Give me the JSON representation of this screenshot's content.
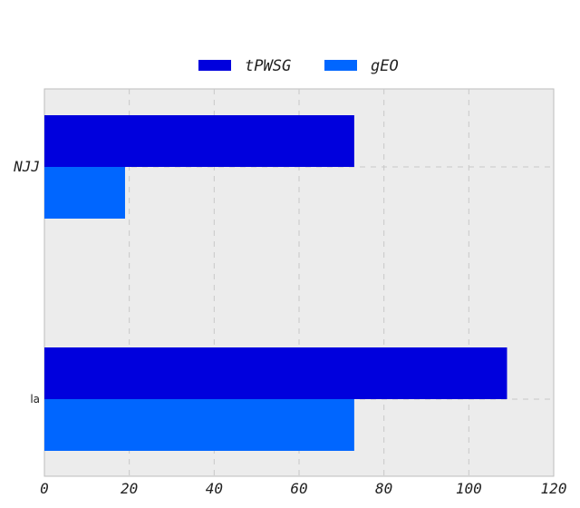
{
  "chart_data": {
    "type": "bar",
    "orientation": "horizontal",
    "categories": [
      "la",
      "NJJ"
    ],
    "series": [
      {
        "name": "tPWSG",
        "values": [
          109,
          73
        ],
        "color": "#0000dd"
      },
      {
        "name": "gEO",
        "values": [
          73,
          19
        ],
        "color": "#0066ff"
      }
    ],
    "xlim": [
      0,
      120
    ],
    "xticks": [
      "0",
      "20",
      "40",
      "60",
      "80",
      "100",
      "120"
    ],
    "grid": true,
    "legend_position": "top-center",
    "plot_background": "#ececec"
  }
}
